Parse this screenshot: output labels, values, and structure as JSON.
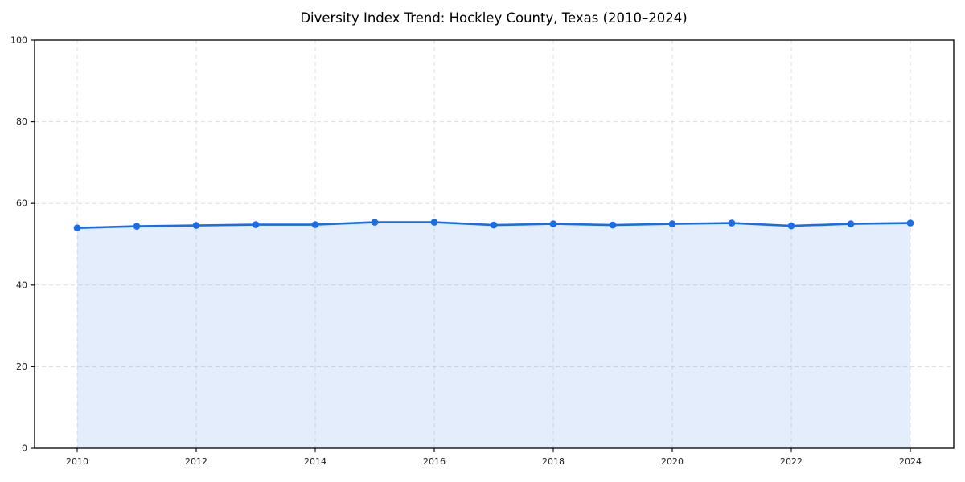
{
  "title": "Diversity Index Trend: Hockley County, Texas (2010–2024)",
  "colors": {
    "line": "#1a6ce8",
    "marker": "#1a6ce8",
    "fill": "rgba(26,108,232,0.12)",
    "grid": "#dcdcdc",
    "frame": "#111111",
    "tick": "#111111",
    "tick_label": "#1a1a1a",
    "background": "#ffffff"
  },
  "chart_data": {
    "type": "area",
    "title": "Diversity Index Trend: Hockley County, Texas (2010–2024)",
    "xlabel": "",
    "ylabel": "",
    "x": [
      2010,
      2011,
      2012,
      2013,
      2014,
      2015,
      2016,
      2017,
      2018,
      2019,
      2020,
      2021,
      2022,
      2023,
      2024
    ],
    "series": [
      {
        "name": "Diversity Index",
        "values": [
          54.0,
          54.4,
          54.6,
          54.8,
          54.8,
          55.4,
          55.4,
          54.7,
          55.0,
          54.7,
          55.0,
          55.2,
          54.5,
          55.0,
          55.2
        ]
      }
    ],
    "xlim": [
      2009.3,
      2024.7
    ],
    "ylim": [
      0,
      100
    ],
    "xticks": [
      2010,
      2012,
      2014,
      2016,
      2018,
      2020,
      2022,
      2024
    ],
    "yticks": [
      0,
      20,
      40,
      60,
      80,
      100
    ],
    "grid": true,
    "grid_style": "dashed",
    "legend": false,
    "marker": "circle",
    "line_width": 2.6,
    "marker_radius": 4.3
  }
}
